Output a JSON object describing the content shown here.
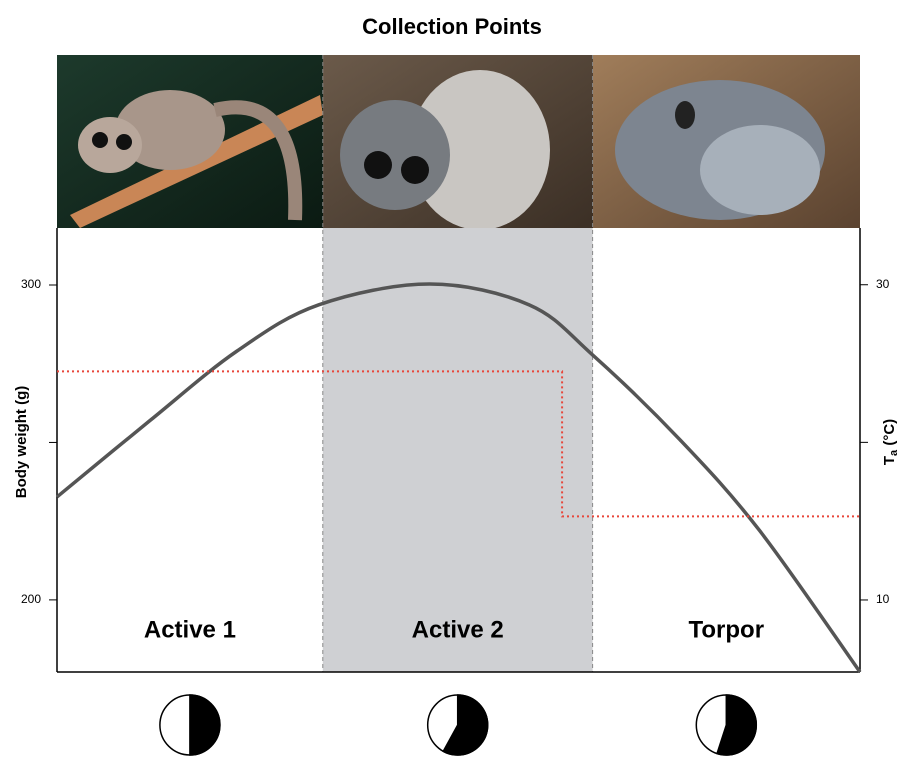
{
  "chart_data": {
    "type": "line",
    "title": "Collection Points",
    "ylabel": "Body weight (g)",
    "y2label": [
      "T",
      "a",
      " (°C)"
    ],
    "xlim": [
      0,
      100
    ],
    "ylim": [
      177.1,
      318.1
    ],
    "yticks": [
      200,
      {
        "value": 250,
        "label": null
      },
      300
    ],
    "y2lim": [
      5.43,
      33.6
    ],
    "y2ticks": [
      10,
      {
        "value": 20,
        "label": null
      },
      30
    ],
    "phases": [
      {
        "label": "Active 1",
        "start": 0,
        "end": 33.1,
        "shaded": false,
        "night_percent": 50
      },
      {
        "label": "Active 2",
        "start": 33.1,
        "end": 66.7,
        "shaded": true,
        "night_percent": 58
      },
      {
        "label": "Torpor",
        "start": 66.7,
        "end": 100,
        "shaded": false,
        "night_percent": 55
      }
    ],
    "series": [
      {
        "color": "#555555",
        "style": "smooth",
        "x": [
          0,
          11.6,
          22.4,
          32.6,
          46.4,
          58.8,
          66.7,
          77.6,
          87.5,
          100
        ],
        "values": [
          232.7,
          257,
          279,
          293.7,
          300.3,
          293.7,
          277.8,
          250.8,
          222,
          177.1
        ]
      },
      {
        "color": "#e8463a",
        "style": "dotted",
        "axis": "y2",
        "x": [
          0,
          62.9,
          62.9,
          100
        ],
        "values": [
          24.5,
          24.5,
          15.3,
          15.3
        ]
      }
    ]
  }
}
